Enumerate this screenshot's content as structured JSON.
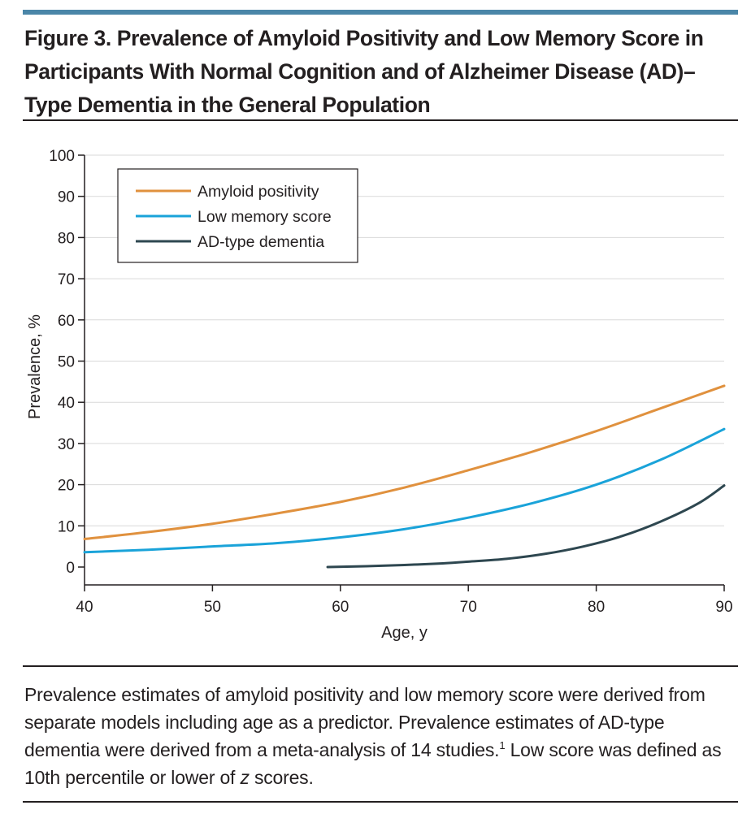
{
  "figure": {
    "title": "Figure 3. Prevalence of Amyloid Positivity and Low Memory Score in Participants With Normal Cognition and of Alzheimer Disease (AD)–Type Dementia in the General Population",
    "caption": {
      "text_1": "Prevalence estimates of amyloid positivity and low memory score were derived from separate models including age as a predictor. Prevalence estimates of AD-type dementia were derived from a meta-analysis of 14 studies.",
      "sup": "1",
      "text_2": " Low score was defined as 10th percentile or lower of ",
      "italic": "z",
      "text_3": " scores."
    }
  },
  "colors": {
    "accent_rule": "#4a86a8",
    "amyloid": "#e0913e",
    "memory": "#1aa3d9",
    "dementia": "#2e4750",
    "grid": "#d9d9d9"
  },
  "chart_data": {
    "type": "line",
    "title": "",
    "xlabel": "Age, y",
    "ylabel": "Prevalence, %",
    "xlim": [
      40,
      90
    ],
    "ylim": [
      0,
      100
    ],
    "xticks": [
      40,
      50,
      60,
      70,
      80,
      90
    ],
    "yticks": [
      0,
      10,
      20,
      30,
      40,
      50,
      60,
      70,
      80,
      90,
      100
    ],
    "grid": true,
    "legend_position": "top-left",
    "series": [
      {
        "name": "Amyloid positivity",
        "color": "#e0913e",
        "x": [
          40,
          45,
          50,
          55,
          60,
          65,
          70,
          75,
          80,
          85,
          90
        ],
        "y": [
          6.8,
          8.5,
          10.5,
          13,
          15.8,
          19.3,
          23.5,
          28,
          33,
          38.5,
          44
        ]
      },
      {
        "name": "Low memory score",
        "color": "#1aa3d9",
        "x": [
          40,
          45,
          50,
          55,
          60,
          65,
          70,
          75,
          80,
          85,
          90
        ],
        "y": [
          3.6,
          4.2,
          5,
          5.8,
          7.2,
          9.2,
          12,
          15.5,
          20,
          26,
          33.5
        ]
      },
      {
        "name": "AD-type dementia",
        "color": "#2e4750",
        "x": [
          59,
          62,
          65,
          68,
          70,
          73,
          76,
          79,
          82,
          85,
          88,
          90
        ],
        "y": [
          0,
          0.2,
          0.5,
          0.9,
          1.3,
          2,
          3.2,
          5,
          7.5,
          11,
          15.5,
          19.8
        ]
      }
    ]
  }
}
